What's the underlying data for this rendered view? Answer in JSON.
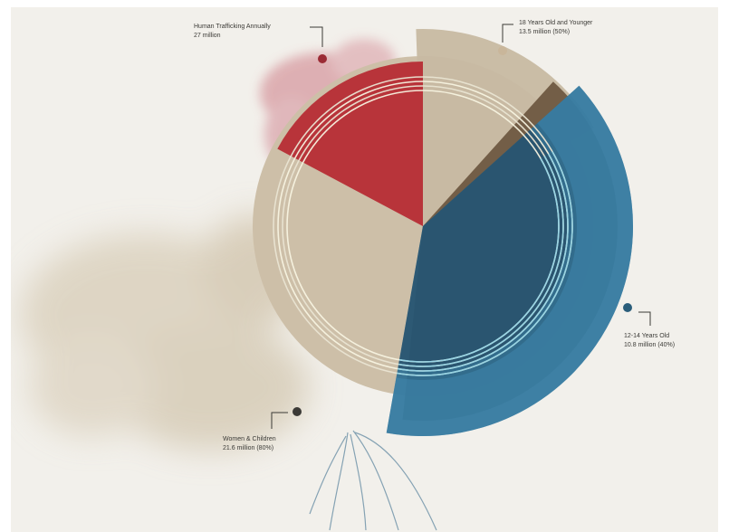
{
  "chart_data": {
    "type": "pie",
    "title": "",
    "slices": [
      {
        "name": "Human Trafficking Annually",
        "value_text": "27 million",
        "value": 27,
        "color": "#b8343a"
      },
      {
        "name": "18 Years Old and Younger",
        "value_text": "13.5 million (50%)",
        "value": 13.5,
        "percent": 50,
        "color": "#c7b9a2"
      },
      {
        "name": "Women & Children",
        "value_text": "21.6 million (80%)",
        "value": 21.6,
        "percent": 80,
        "color": "#6b563f"
      },
      {
        "name": "12-14 Years Old",
        "value_text": "10.8 million (40%)",
        "value": 10.8,
        "percent": 40,
        "color": "#2d6e93"
      }
    ],
    "grid": false,
    "legend": "callout labels around the chart"
  },
  "labels": {
    "trafficking_name": "Human Trafficking Annually",
    "trafficking_value": "27 million",
    "youth_name": "18 Years Old and Younger",
    "youth_value": "13.5 million (50%)",
    "teens_name": "12-14 Years Old",
    "teens_value": "10.8 million (40%)",
    "women_name": "Women & Children",
    "women_value": "21.6 million (80%)"
  }
}
